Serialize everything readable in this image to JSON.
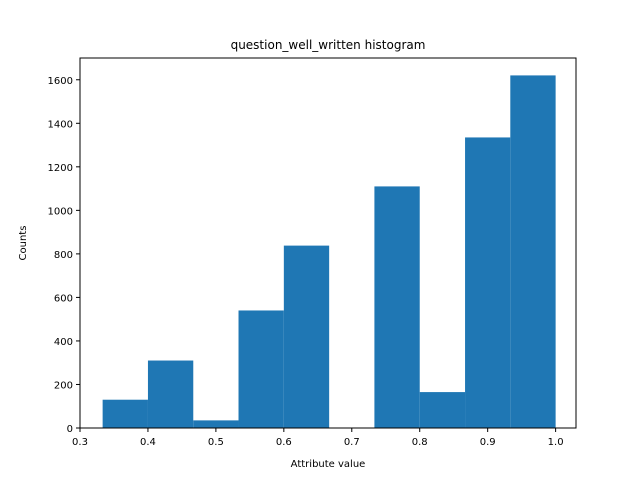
{
  "chart_data": {
    "type": "bar",
    "title": "question_well_written histogram",
    "xlabel": "Attribute value",
    "ylabel": "Counts",
    "xlim": [
      0.3,
      1.03
    ],
    "ylim": [
      0,
      1700
    ],
    "x_ticks": [
      "0.3",
      "0.4",
      "0.5",
      "0.6",
      "0.7",
      "0.8",
      "0.9",
      "1.0"
    ],
    "y_ticks": [
      "0",
      "200",
      "400",
      "600",
      "800",
      "1000",
      "1200",
      "1400",
      "1600"
    ],
    "grid": false,
    "legend": "none",
    "bar_color": "#1f77b4",
    "bins": [
      {
        "start": 0.3333,
        "end": 0.4,
        "value": 130
      },
      {
        "start": 0.4,
        "end": 0.4667,
        "value": 310
      },
      {
        "start": 0.4667,
        "end": 0.5333,
        "value": 35
      },
      {
        "start": 0.5333,
        "end": 0.6,
        "value": 540
      },
      {
        "start": 0.6,
        "end": 0.6667,
        "value": 838
      },
      {
        "start": 0.6667,
        "end": 0.7333,
        "value": 0
      },
      {
        "start": 0.7333,
        "end": 0.8,
        "value": 1110
      },
      {
        "start": 0.8,
        "end": 0.8667,
        "value": 165
      },
      {
        "start": 0.8667,
        "end": 0.9333,
        "value": 1335
      },
      {
        "start": 0.9333,
        "end": 1.0,
        "value": 1620
      }
    ]
  }
}
